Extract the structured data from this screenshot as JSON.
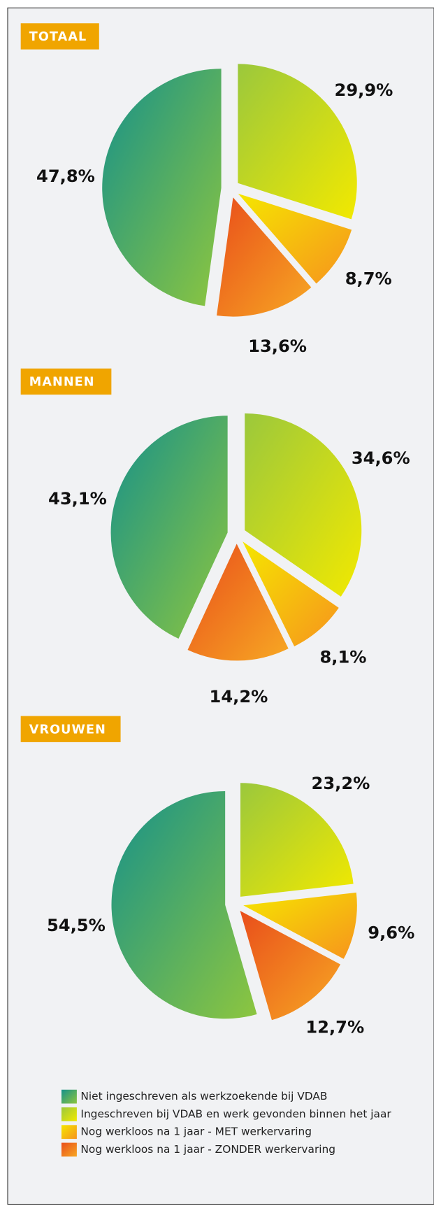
{
  "chart_data": [
    {
      "type": "pie",
      "title": "TOTAAL",
      "values": [
        29.9,
        8.7,
        13.6,
        47.8
      ],
      "value_labels": [
        "29,9%",
        "8,7%",
        "13,6%",
        "47,8%"
      ]
    },
    {
      "type": "pie",
      "title": "MANNEN",
      "values": [
        34.6,
        8.1,
        14.2,
        43.1
      ],
      "value_labels": [
        "34,6%",
        "8,1%",
        "14,2%",
        "43,1%"
      ]
    },
    {
      "type": "pie",
      "title": "VROUWEN",
      "values": [
        23.2,
        9.6,
        12.7,
        54.5
      ],
      "value_labels": [
        "23,2%",
        "9,6%",
        "12,7%",
        "54,5%"
      ]
    }
  ],
  "legend": [
    {
      "name": "Ingeschreven bij VDAB en werk gevonden binnen het jaar",
      "color": [
        "#9bc83c",
        "#f2e900"
      ]
    },
    {
      "name": "Nog werkloos na 1 jaar - MET werkervaring",
      "color": [
        "#f5e600",
        "#f7941d"
      ]
    },
    {
      "name": "Nog werkloos na 1 jaar - ZONDER werkervaring",
      "color": [
        "#e94e1b",
        "#f7a823"
      ]
    },
    {
      "name": "Niet ingeschreven als werkzoekende bij VDAB",
      "color": [
        "#16918a",
        "#8dc63f"
      ]
    }
  ]
}
